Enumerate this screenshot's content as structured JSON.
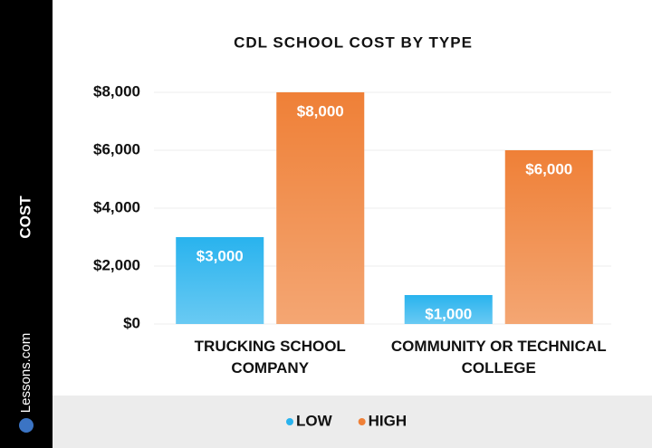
{
  "chart_data": {
    "type": "bar",
    "title": "CDL SCHOOL COST BY TYPE",
    "y_label": "COST",
    "watermark": "Lessons.com",
    "categories": [
      "TRUCKING SCHOOL COMPANY",
      "COMMUNITY OR TECHNICAL COLLEGE"
    ],
    "series": [
      {
        "name": "LOW",
        "color": "#29b3ee",
        "values": [
          3000,
          1000
        ],
        "value_labels": [
          "$3,000",
          "$1,000"
        ]
      },
      {
        "name": "HIGH",
        "color": "#ef8037",
        "values": [
          8000,
          6000
        ],
        "value_labels": [
          "$8,000",
          "$6,000"
        ]
      }
    ],
    "ylim": [
      0,
      8000
    ],
    "yticks": [
      {
        "value": 0,
        "label": "$0"
      },
      {
        "value": 2000,
        "label": "$2,000"
      },
      {
        "value": 4000,
        "label": "$4,000"
      },
      {
        "value": 6000,
        "label": "$6,000"
      },
      {
        "value": 8000,
        "label": "$8,000"
      }
    ],
    "grid": true
  }
}
